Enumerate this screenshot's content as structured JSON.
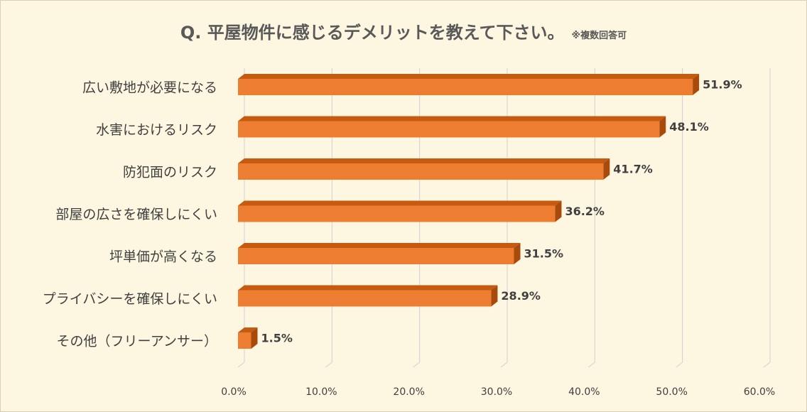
{
  "chart_data": {
    "type": "bar",
    "orientation": "horizontal",
    "title": "Q. 平屋物件に感じるデメリットを教えて下さい。",
    "subtitle": "※複数回答可",
    "categories": [
      "広い敷地が必要になる",
      "水害におけるリスク",
      "防犯面のリスク",
      "部屋の広さを確保しにくい",
      "坪単価が高くなる",
      "プライバシーを確保しにくい",
      "その他（フリーアンサー）"
    ],
    "values": [
      51.9,
      48.1,
      41.7,
      36.2,
      31.5,
      28.9,
      1.5
    ],
    "value_labels": [
      "51.9%",
      "48.1%",
      "41.7%",
      "36.2%",
      "31.5%",
      "28.9%",
      "1.5%"
    ],
    "xlim": [
      0,
      60
    ],
    "ticks": [
      0,
      10,
      20,
      30,
      40,
      50,
      60
    ],
    "tick_labels": [
      "0.0%",
      "10.0%",
      "20.0%",
      "30.0%",
      "40.0%",
      "50.0%",
      "60.0%"
    ],
    "grid": true,
    "legend": "none",
    "colors": {
      "bar_front": "#ed7d31",
      "bar_top": "#c55a11",
      "bar_side": "#a84a0c",
      "grid": "#d0d0d0",
      "text": "#404040",
      "background": "#fdf6e0"
    }
  }
}
